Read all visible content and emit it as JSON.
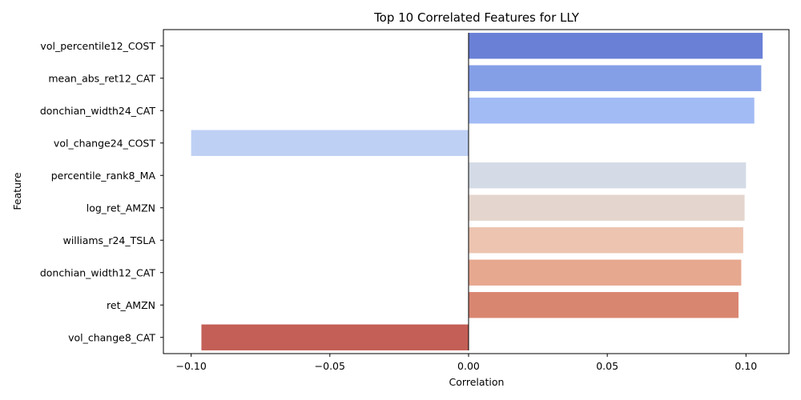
{
  "chart_data": {
    "type": "bar",
    "orientation": "horizontal",
    "title": "Top 10 Correlated Features for LLY",
    "xlabel": "Correlation",
    "ylabel": "Feature",
    "xlim": [
      -0.11,
      0.1155
    ],
    "xticks": [
      -0.1,
      -0.05,
      0.0,
      0.05,
      0.1
    ],
    "xtick_labels": [
      "−0.10",
      "−0.05",
      "0.00",
      "0.05",
      "0.10"
    ],
    "grid": false,
    "categories": [
      "vol_percentile12_COST",
      "mean_abs_ret12_CAT",
      "donchian_width24_CAT",
      "vol_change24_COST",
      "percentile_rank8_MA",
      "log_ret_AMZN",
      "williams_r24_TSLA",
      "donchian_width12_CAT",
      "ret_AMZN",
      "vol_change8_CAT"
    ],
    "values": [
      0.106,
      0.1055,
      0.103,
      -0.1,
      0.1,
      0.0995,
      0.099,
      0.0983,
      0.0973,
      -0.0963
    ],
    "colors": [
      "#6a80d6",
      "#859fe7",
      "#a2bbf5",
      "#bed0f4",
      "#d4dbe6",
      "#e4d6ce",
      "#ecc4b0",
      "#e7a890",
      "#d98671",
      "#c35f56"
    ]
  }
}
